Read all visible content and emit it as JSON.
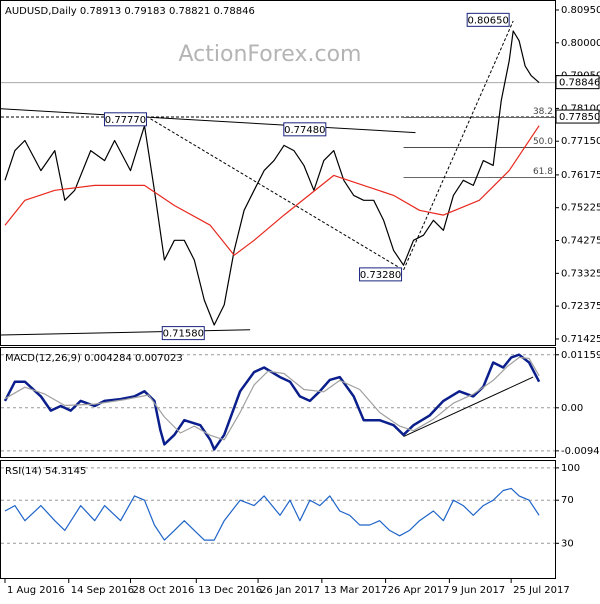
{
  "chart_data": [
    {
      "type": "line",
      "title": "AUDUSD,Daily 0.78913 0.79183 0.78821 0.78846",
      "watermark": "ActionForex.com",
      "xlim": [
        -2,
        276
      ],
      "ylim": [
        0.7125,
        0.8121
      ],
      "yticks": [
        {
          "value": 0.8095,
          "label": "0.80950"
        },
        {
          "value": 0.8,
          "label": "0.80000"
        },
        {
          "value": 0.7905,
          "label": "0.79050"
        },
        {
          "value": 0.781,
          "label": "0.78100"
        },
        {
          "value": 0.7715,
          "label": "0.77150"
        },
        {
          "value": 0.76175,
          "label": "0.76175"
        },
        {
          "value": 0.75225,
          "label": "0.75225"
        },
        {
          "value": 0.74275,
          "label": "0.74275"
        },
        {
          "value": 0.73325,
          "label": "0.73325"
        },
        {
          "value": 0.72375,
          "label": "0.72375"
        },
        {
          "value": 0.71425,
          "label": "0.71425"
        }
      ],
      "series": [
        {
          "color": "#000000",
          "x": [
            0,
            5,
            10,
            18,
            25,
            30,
            35,
            43,
            50,
            55,
            63,
            70,
            75,
            80,
            85,
            90,
            95,
            100,
            105,
            110,
            115,
            120,
            125,
            130,
            135,
            140,
            145,
            150,
            155,
            160,
            165,
            170,
            175,
            180,
            185,
            190,
            195,
            200,
            205,
            210,
            215,
            220,
            225,
            230,
            235,
            240,
            245,
            249,
            253,
            255,
            258,
            261,
            264,
            268
          ],
          "values": [
            0.7602,
            0.7688,
            0.7717,
            0.763,
            0.7688,
            0.7544,
            0.7573,
            0.7688,
            0.7659,
            0.7717,
            0.763,
            0.776,
            0.7573,
            0.7371,
            0.7428,
            0.7428,
            0.7371,
            0.7255,
            0.7183,
            0.7241,
            0.7399,
            0.7515,
            0.7573,
            0.763,
            0.7659,
            0.7703,
            0.7688,
            0.7645,
            0.7573,
            0.7659,
            0.7688,
            0.7602,
            0.7558,
            0.7544,
            0.7544,
            0.7486,
            0.7399,
            0.7356,
            0.7428,
            0.7443,
            0.7486,
            0.7457,
            0.7558,
            0.7602,
            0.7587,
            0.7659,
            0.7645,
            0.7832,
            0.7948,
            0.8034,
            0.8006,
            0.7933,
            0.7905,
            0.78846
          ]
        },
        {
          "color": "#e8281e",
          "x": [
            0,
            10,
            25,
            45,
            70,
            85,
            103,
            115,
            125,
            140,
            165,
            180,
            195,
            208,
            220,
            238,
            253,
            268
          ],
          "values": [
            0.7472,
            0.7544,
            0.7573,
            0.7587,
            0.7587,
            0.7529,
            0.7472,
            0.7385,
            0.7428,
            0.7501,
            0.7616,
            0.7587,
            0.7558,
            0.7515,
            0.7501,
            0.7544,
            0.763,
            0.776
          ]
        }
      ],
      "annotations": [
        {
          "label": "0.80650",
          "value": 0.8065,
          "x": 254
        },
        {
          "label": "0.77770",
          "value": 0.7777,
          "x": 72
        },
        {
          "label": "0.77480",
          "value": 0.7748,
          "x": 162
        },
        {
          "label": "0.73280",
          "value": 0.7328,
          "x": 200
        },
        {
          "label": "0.71580",
          "value": 0.7158,
          "x": 101
        }
      ],
      "levels": [
        {
          "label": "38.2",
          "value": 0.7784,
          "x": 200
        },
        {
          "label": "50.0",
          "value": 0.7697,
          "x": 200
        },
        {
          "label": "61.8",
          "value": 0.761,
          "x": 200
        }
      ],
      "last_price": {
        "label": "0.78846",
        "value": 0.78846
      },
      "support": {
        "label": "0.77850",
        "value": 0.7785
      },
      "trendlines": [
        {
          "x": [
            -2,
            206
          ],
          "values": [
            0.7809,
            0.774
          ],
          "dash": false
        },
        {
          "x": [
            -2,
            123
          ],
          "values": [
            0.7154,
            0.7169
          ],
          "dash": false
        },
        {
          "x": [
            73,
            200,
            255
          ],
          "values": [
            0.778,
            0.7342,
            0.8063
          ],
          "dash": true
        }
      ]
    },
    {
      "type": "line",
      "title": "MACD(12,26,9) 0.004284 0.007023",
      "xlim": [
        -2,
        276
      ],
      "ylim": [
        -0.01075,
        0.01307
      ],
      "yticks": [
        0.01159,
        {
          "value": 0,
          "label": "0.00"
        },
        -0.009408
      ],
      "series": [
        {
          "color": "#0a1e8c",
          "x": [
            0,
            5,
            10,
            18,
            23,
            28,
            33,
            38,
            45,
            50,
            58,
            65,
            70,
            75,
            78,
            80,
            85,
            90,
            98,
            103,
            105,
            110,
            118,
            125,
            130,
            138,
            143,
            148,
            153,
            158,
            163,
            168,
            175,
            180,
            188,
            195,
            200,
            205,
            213,
            220,
            228,
            235,
            240,
            245,
            250,
            254,
            258,
            263,
            268
          ],
          "values": [
            0.0015,
            0.0057,
            0.0057,
            0.0025,
            -0.0006,
            0.0004,
            -0.0006,
            0.0015,
            0.0004,
            0.0015,
            0.0019,
            0.0025,
            0.0036,
            0.0015,
            -0.0049,
            -0.008,
            -0.0059,
            -0.0027,
            -0.0038,
            -0.007,
            -0.0091,
            -0.0059,
            0.0036,
            0.0078,
            0.0088,
            0.0067,
            0.0057,
            0.0025,
            0.0015,
            0.0036,
            0.0061,
            0.0067,
            0.0025,
            -0.0027,
            -0.0027,
            -0.0038,
            -0.0059,
            -0.0038,
            -0.0017,
            0.0015,
            0.0036,
            0.0025,
            0.0046,
            0.0099,
            0.0088,
            0.011,
            0.0116,
            0.0099,
            0.0057
          ]
        },
        {
          "color": "#a0a0a0",
          "x": [
            0,
            10,
            20,
            30,
            45,
            60,
            72,
            80,
            88,
            95,
            103,
            110,
            118,
            125,
            132,
            140,
            150,
            160,
            168,
            178,
            188,
            198,
            205,
            215,
            225,
            235,
            245,
            252,
            258,
            263,
            268
          ],
          "values": [
            0.002,
            0.0045,
            0.003,
            0.0005,
            0.0008,
            0.0018,
            0.0028,
            -0.002,
            -0.0055,
            -0.004,
            -0.006,
            -0.007,
            -0.001,
            0.005,
            0.008,
            0.0075,
            0.004,
            0.0035,
            0.006,
            0.004,
            -0.001,
            -0.004,
            -0.005,
            -0.0025,
            0.001,
            0.003,
            0.006,
            0.009,
            0.011,
            0.0108,
            0.007
          ]
        }
      ],
      "trendlines": [
        {
          "x": [
            200,
            265
          ],
          "values": [
            -0.0063,
            0.0067
          ],
          "dash": false
        }
      ]
    },
    {
      "type": "line",
      "title": "RSI(14) 54.3145",
      "xlim": [
        -2,
        276
      ],
      "ylim": [
        -2.2,
        106.4
      ],
      "yticks": [
        100,
        70,
        30
      ],
      "xticks": [
        {
          "value": 0,
          "label": "1 Aug 2016"
        },
        {
          "value": 32,
          "label": "14 Sep 2016"
        },
        {
          "value": 63,
          "label": "28 Oct 2016"
        },
        {
          "value": 96,
          "label": "13 Dec 2016"
        },
        {
          "value": 127,
          "label": "26 Jan 2017"
        },
        {
          "value": 159,
          "label": "13 Mar 2017"
        },
        {
          "value": 191,
          "label": "26 Apr 2017"
        },
        {
          "value": 223,
          "label": "9 Jun 2017"
        },
        {
          "value": 254,
          "label": "25 Jul 2017"
        }
      ],
      "series": [
        {
          "color": "#1e64c8",
          "x": [
            0,
            5,
            10,
            18,
            25,
            30,
            38,
            45,
            50,
            58,
            65,
            70,
            75,
            80,
            85,
            90,
            95,
            100,
            105,
            110,
            118,
            125,
            130,
            138,
            143,
            148,
            153,
            158,
            163,
            168,
            173,
            178,
            183,
            188,
            193,
            198,
            203,
            208,
            215,
            220,
            225,
            230,
            235,
            240,
            245,
            250,
            254,
            258,
            263,
            268
          ],
          "values": [
            60,
            65,
            51,
            65,
            51,
            42,
            65,
            51,
            65,
            51,
            74,
            70,
            47,
            33,
            42,
            51,
            42,
            33,
            33,
            51,
            70,
            65,
            74,
            56,
            70,
            51,
            70,
            65,
            74,
            60,
            56,
            47,
            47,
            51,
            42,
            37,
            42,
            51,
            60,
            51,
            70,
            65,
            56,
            65,
            70,
            79,
            81,
            74,
            70,
            56
          ]
        }
      ]
    }
  ]
}
